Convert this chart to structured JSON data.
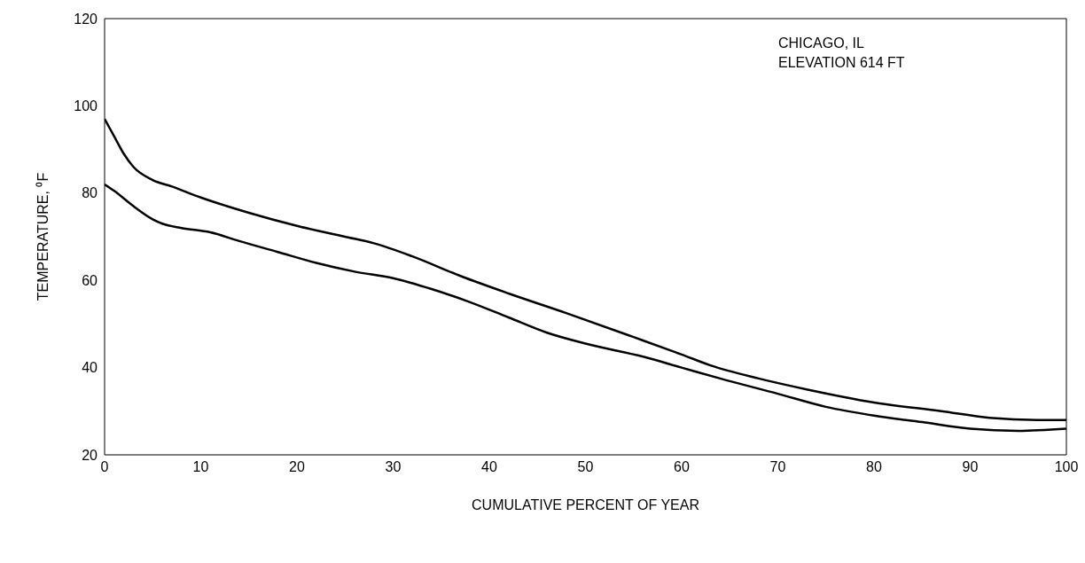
{
  "chart_data": {
    "type": "line",
    "xlabel": "CUMULATIVE PERCENT OF YEAR",
    "ylabel": "TEMPERATURE, ⁰F",
    "annotations": [
      "CHICAGO, IL",
      "ELEVATION 614 FT"
    ],
    "xlim": [
      0,
      100
    ],
    "ylim": [
      20,
      120
    ],
    "xticks": [
      0,
      10,
      20,
      30,
      40,
      50,
      60,
      70,
      80,
      90,
      100
    ],
    "yticks": [
      20,
      40,
      60,
      80,
      100,
      120
    ],
    "marker": "none",
    "line_style": "solid",
    "series": [
      {
        "color": "#000000",
        "x": [
          0,
          1,
          2,
          3,
          5,
          7,
          10,
          15,
          20,
          25,
          28,
          32,
          37,
          42,
          48,
          55,
          60,
          63,
          68,
          73,
          80,
          87,
          92,
          97,
          100
        ],
        "values": [
          97,
          93,
          89,
          86,
          83,
          81.5,
          79,
          75.5,
          72.5,
          70,
          68.5,
          65.5,
          61,
          57,
          52.5,
          47,
          43,
          40.5,
          37.5,
          35,
          32,
          30,
          28.5,
          28,
          28
        ]
      },
      {
        "color": "#000000",
        "x": [
          0,
          1,
          3,
          5,
          6,
          8,
          11,
          14,
          18,
          22,
          26,
          30,
          34,
          38,
          42,
          46,
          50,
          56,
          60,
          64,
          70,
          75,
          80,
          85,
          90,
          95,
          100
        ],
        "values": [
          82,
          80.5,
          77,
          74,
          73,
          72,
          71,
          69,
          66.5,
          64,
          62,
          60.5,
          58,
          55,
          51.5,
          48,
          45.5,
          42.5,
          40,
          37.5,
          34,
          31,
          29,
          27.5,
          26,
          25.5,
          26
        ]
      }
    ]
  }
}
